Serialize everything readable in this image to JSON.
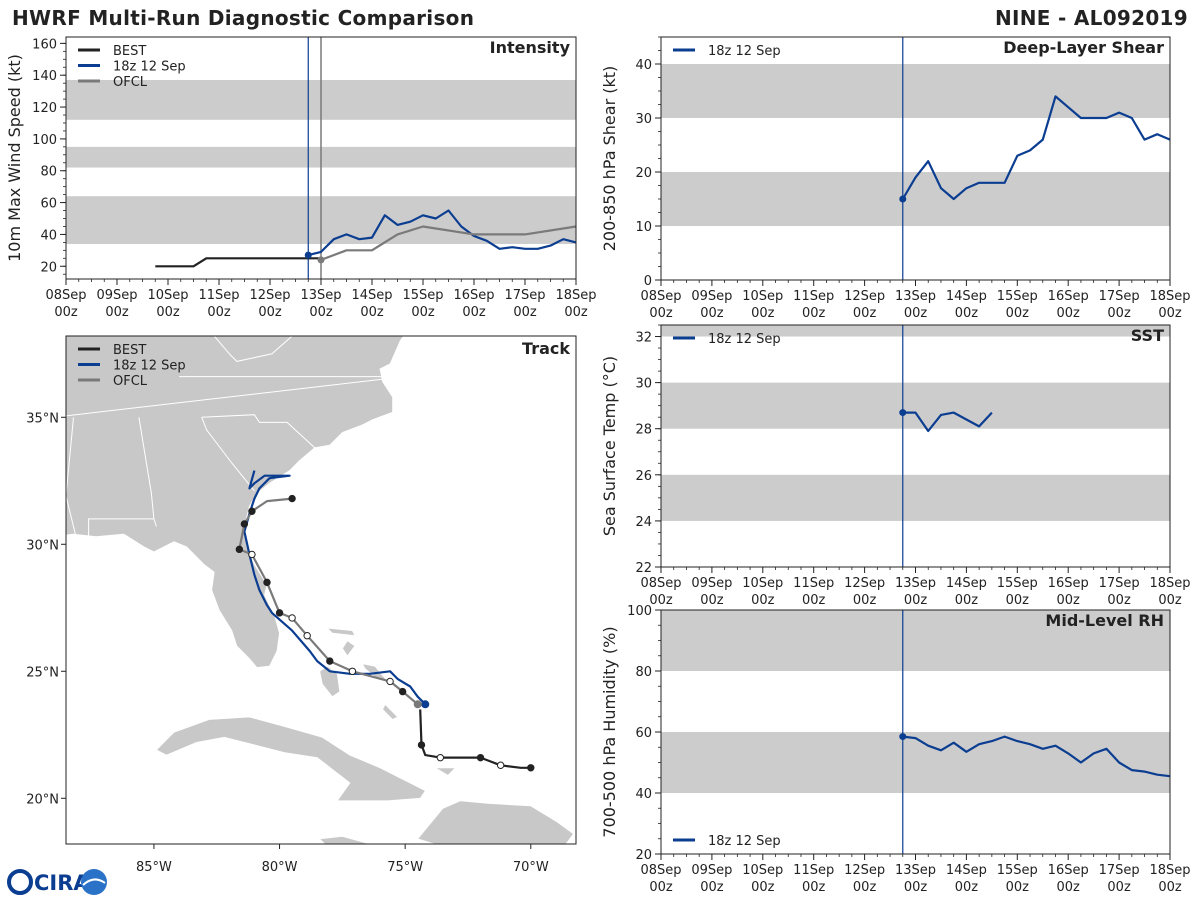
{
  "header": {
    "title": "HWRF Multi-Run Diagnostic Comparison",
    "storm": "NINE - AL092019"
  },
  "legend_labels": {
    "best": "BEST",
    "hwrf": "18z 12 Sep",
    "ofcl": "OFCL"
  },
  "logo": {
    "text": "CIRA"
  },
  "colors": {
    "best": "#222222",
    "hwrf": "#0b3d91",
    "ofcl": "#7a7a7a",
    "band": "#cccccc",
    "land": "#c8c8c8"
  },
  "time_axis": {
    "ticks": [
      {
        "day": "08Sep",
        "hour": "00z"
      },
      {
        "day": "09Sep",
        "hour": "00z"
      },
      {
        "day": "10Sep",
        "hour": "00z"
      },
      {
        "day": "11Sep",
        "hour": "00z"
      },
      {
        "day": "12Sep",
        "hour": "00z"
      },
      {
        "day": "13Sep",
        "hour": "00z"
      },
      {
        "day": "14Sep",
        "hour": "00z"
      },
      {
        "day": "15Sep",
        "hour": "00z"
      },
      {
        "day": "16Sep",
        "hour": "00z"
      },
      {
        "day": "17Sep",
        "hour": "00z"
      },
      {
        "day": "18Sep",
        "hour": "00z"
      }
    ],
    "start_day": 8,
    "end_day": 18
  },
  "chart_data": [
    {
      "id": "intensity",
      "type": "line",
      "title": "Intensity",
      "ylabel": "10m Max Wind Speed (kt)",
      "ylim": [
        12,
        164
      ],
      "yticks": [
        20,
        40,
        60,
        80,
        100,
        120,
        140,
        160
      ],
      "bands": [
        [
          34,
          64
        ],
        [
          82,
          95
        ],
        [
          112,
          137
        ]
      ],
      "init_line_day": 12.75,
      "ofcl_line_day": 13.0,
      "legend": [
        "best",
        "hwrf",
        "ofcl"
      ],
      "series": [
        {
          "name": "BEST",
          "key": "best",
          "x": [
            9.75,
            10.0,
            10.25,
            10.5,
            10.75,
            11.0,
            11.5,
            12.0,
            12.5,
            12.75,
            13.0
          ],
          "y": [
            20,
            20,
            20,
            20,
            25,
            25,
            25,
            25,
            25,
            25,
            25
          ]
        },
        {
          "name": "18z 12 Sep",
          "key": "hwrf",
          "start_marker": true,
          "x": [
            12.75,
            13.0,
            13.25,
            13.5,
            13.75,
            14.0,
            14.25,
            14.5,
            14.75,
            15.0,
            15.25,
            15.5,
            15.75,
            16.0,
            16.25,
            16.5,
            16.75,
            17.0,
            17.25,
            17.5,
            17.75,
            18.0
          ],
          "y": [
            27,
            29,
            37,
            40,
            37,
            38,
            52,
            46,
            48,
            52,
            50,
            55,
            45,
            39,
            36,
            31,
            32,
            31,
            31,
            33,
            37,
            35
          ]
        },
        {
          "name": "OFCL",
          "key": "ofcl",
          "start_marker": true,
          "x": [
            13.0,
            13.5,
            14.0,
            14.5,
            15.0,
            16.0,
            17.0,
            18.0
          ],
          "y": [
            24,
            30,
            30,
            40,
            45,
            40,
            40,
            45
          ]
        }
      ]
    },
    {
      "id": "shear",
      "type": "line",
      "title": "Deep-Layer Shear",
      "ylabel": "200-850 hPa Shear (kt)",
      "ylim": [
        0,
        45
      ],
      "yticks": [
        0,
        10,
        20,
        30,
        40
      ],
      "bands": [
        [
          10,
          20
        ],
        [
          30,
          40
        ]
      ],
      "init_line_day": 12.75,
      "legend": [
        "hwrf"
      ],
      "series": [
        {
          "name": "18z 12 Sep",
          "key": "hwrf",
          "start_marker": true,
          "x": [
            12.75,
            13.0,
            13.25,
            13.5,
            13.75,
            14.0,
            14.25,
            14.5,
            14.75,
            15.0,
            15.25,
            15.5,
            15.75,
            16.0,
            16.25,
            16.5,
            16.75,
            17.0,
            17.25,
            17.5,
            17.75,
            18.0
          ],
          "y": [
            15,
            19,
            22,
            17,
            15,
            17,
            18,
            18,
            18,
            23,
            24,
            26,
            34,
            32,
            30,
            30,
            30,
            31,
            30,
            26,
            27,
            26
          ]
        }
      ]
    },
    {
      "id": "sst",
      "type": "line",
      "title": "SST",
      "ylabel": "Sea Surface Temp (°C)",
      "ylim": [
        22,
        32.5
      ],
      "yticks": [
        22,
        24,
        26,
        28,
        30,
        32
      ],
      "bands": [
        [
          24,
          26
        ],
        [
          28,
          30
        ],
        [
          32,
          32.5
        ]
      ],
      "init_line_day": 12.75,
      "legend": [
        "hwrf"
      ],
      "series": [
        {
          "name": "18z 12 Sep",
          "key": "hwrf",
          "start_marker": true,
          "x": [
            12.75,
            13.0,
            13.25,
            13.5,
            13.75,
            14.0,
            14.25,
            14.5
          ],
          "y": [
            28.7,
            28.7,
            27.9,
            28.6,
            28.7,
            28.4,
            28.1,
            28.7
          ]
        }
      ]
    },
    {
      "id": "rh",
      "type": "line",
      "title": "Mid-Level RH",
      "ylabel": "700-500 hPa Humidity (%)",
      "ylim": [
        20,
        100
      ],
      "yticks": [
        20,
        40,
        60,
        80,
        100
      ],
      "bands": [
        [
          40,
          60
        ],
        [
          80,
          100
        ]
      ],
      "init_line_day": 12.75,
      "legend": [
        "hwrf"
      ],
      "legend_pos": "bottom-left",
      "series": [
        {
          "name": "18z 12 Sep",
          "key": "hwrf",
          "start_marker": true,
          "x": [
            12.75,
            13.0,
            13.25,
            13.5,
            13.75,
            14.0,
            14.25,
            14.5,
            14.75,
            15.0,
            15.25,
            15.5,
            15.75,
            16.0,
            16.25,
            16.5,
            16.75,
            17.0,
            17.25,
            17.5,
            17.75,
            18.0
          ],
          "y": [
            58.5,
            58,
            55.5,
            54,
            56.5,
            53.5,
            56,
            57,
            58.5,
            57,
            56,
            54.5,
            55.5,
            53,
            50,
            53,
            54.5,
            50,
            47.5,
            47,
            46,
            45.5
          ]
        }
      ]
    },
    {
      "id": "track",
      "type": "map",
      "title": "Track",
      "lon_range": [
        -88.5,
        -68.2
      ],
      "lat_range": [
        18.2,
        38.2
      ],
      "xticks": [
        {
          "lon": -85,
          "label": "85°W"
        },
        {
          "lon": -80,
          "label": "80°W"
        },
        {
          "lon": -75,
          "label": "75°W"
        },
        {
          "lon": -70,
          "label": "70°W"
        }
      ],
      "yticks": [
        {
          "lat": 20,
          "label": "20°N"
        },
        {
          "lat": 25,
          "label": "25°N"
        },
        {
          "lat": 30,
          "label": "30°N"
        },
        {
          "lat": 35,
          "label": "35°N"
        }
      ],
      "legend": [
        "best",
        "hwrf",
        "ofcl"
      ],
      "tracks": [
        {
          "name": "BEST",
          "key": "best",
          "lon": [
            -70.0,
            -70.4,
            -71.2,
            -72.0,
            -73.0,
            -73.6,
            -74.2,
            -74.35,
            -74.4
          ],
          "lat": [
            21.2,
            21.2,
            21.3,
            21.6,
            21.6,
            21.6,
            21.7,
            22.1,
            23.5
          ],
          "markers": [
            1,
            0,
            1,
            1,
            0,
            1,
            0,
            1,
            0
          ],
          "filled": [
            true,
            true,
            false,
            true,
            false,
            false,
            false,
            true,
            false
          ]
        },
        {
          "name": "18z 12 Sep",
          "key": "hwrf",
          "start_marker": true,
          "lon": [
            -74.2,
            -74.5,
            -74.8,
            -75.3,
            -75.6,
            -76.4,
            -77.2,
            -78.0,
            -78.5,
            -78.8,
            -79.5,
            -80.3,
            -80.5,
            -80.8,
            -81.0,
            -81.2,
            -81.4,
            -81.2,
            -81.0,
            -80.8,
            -80.4,
            -79.6,
            -80.6,
            -81.0,
            -81.2,
            -81.0
          ],
          "lat": [
            23.7,
            24.0,
            24.4,
            24.7,
            25.0,
            24.9,
            24.9,
            25.0,
            25.4,
            25.8,
            26.6,
            27.3,
            27.6,
            28.2,
            28.8,
            29.6,
            30.5,
            31.2,
            31.8,
            32.2,
            32.6,
            32.7,
            32.7,
            32.4,
            32.2,
            32.9
          ],
          "markers": [
            0,
            0,
            0,
            0,
            0,
            0,
            0,
            0,
            0,
            0,
            0,
            0,
            0,
            0,
            0,
            0,
            0,
            0,
            0,
            0,
            0,
            0,
            0,
            0,
            0,
            0
          ],
          "filled": [
            true,
            true,
            true,
            true,
            true,
            true,
            true,
            true,
            true,
            true,
            true,
            true,
            true,
            true,
            true,
            true,
            true,
            true,
            true,
            true,
            true,
            true,
            true,
            true,
            true,
            true
          ]
        },
        {
          "name": "OFCL",
          "key": "ofcl",
          "start_marker": true,
          "lon": [
            -74.5,
            -75.1,
            -75.6,
            -77.1,
            -78.0,
            -78.9,
            -79.5,
            -80.0,
            -80.5,
            -81.1,
            -81.6,
            -81.4,
            -81.1,
            -80.5,
            -79.5
          ],
          "lat": [
            23.7,
            24.2,
            24.6,
            25.0,
            25.4,
            26.4,
            27.1,
            27.3,
            28.5,
            29.6,
            29.8,
            30.8,
            31.3,
            31.7,
            31.8
          ],
          "markers": [
            0,
            1,
            1,
            1,
            1,
            1,
            1,
            1,
            1,
            1,
            1,
            1,
            1,
            0,
            1
          ],
          "filled": [
            true,
            true,
            false,
            false,
            true,
            false,
            false,
            true,
            true,
            false,
            true,
            true,
            true,
            true,
            true
          ]
        }
      ]
    }
  ]
}
